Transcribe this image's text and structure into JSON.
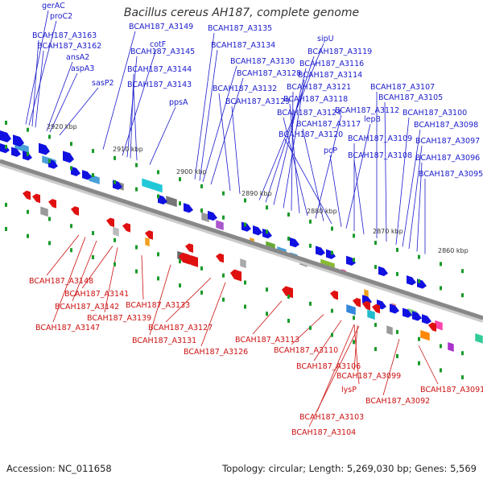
{
  "title": "Bacillus cereus AH187, complete genome",
  "footer": {
    "accession": "Accession: NC_011658",
    "summary": "Topology: circular; Length: 5,269,030 bp; Genes: 5,569"
  },
  "colors": {
    "top_labels": "#1a1acc",
    "bottom_labels": "#cc1111",
    "forward_genes": "#1010e0",
    "reverse_genes": "#e01010",
    "backbone": "#888888"
  },
  "scale_labels": [
    "2920 kbp",
    "2910 kbp",
    "2900 kbp",
    "2890 kbp",
    "2880 kbp",
    "2870 kbp",
    "2860 kbp"
  ],
  "top_labels": [
    "gerAC",
    "proC2",
    "BCAH187_A3163",
    "BCAH187_A3162",
    "ansA2",
    "aspA3",
    "sasP2",
    "BCAH187_A3149",
    "cotF",
    "BCAH187_A3145",
    "BCAH187_A3144",
    "BCAH187_A3143",
    "ppsA",
    "BCAH187_A3135",
    "BCAH187_A3134",
    "BCAH187_A3130",
    "BCAH187_A3128",
    "BCAH187_A3132",
    "BCAH187_A3129",
    "sipU",
    "BCAH187_A3119",
    "BCAH187_A3116",
    "BCAH187_A3114",
    "BCAH187_A3121",
    "BCAH187_A3118",
    "BCAH187_A3124",
    "BCAH187_A3112",
    "BCAH187_A3117",
    "BCAH187_A3120",
    "pcP",
    "lepB",
    "BCAH187_A3109",
    "BCAH187_A3108",
    "BCAH187_A3107",
    "BCAH187_A3105",
    "BCAH187_A3100",
    "BCAH187_A3098",
    "BCAH187_A3097",
    "BCAH187_A3096",
    "BCAH187_A3095"
  ],
  "bottom_labels": [
    "BCAH187_A3148",
    "BCAH187_A3141",
    "BCAH187_A3142",
    "BCAH187_A3139",
    "BCAH187_A3147",
    "BCAH187_A3133",
    "BCAH187_A3127",
    "BCAH187_A3131",
    "BCAH187_A3126",
    "BCAH187_A3113",
    "BCAH187_A3110",
    "BCAH187_A3106",
    "BCAH187_A3099",
    "lysP",
    "BCAH187_A3092",
    "BCAH187_A3091",
    "BCAH187_A3103",
    "BCAH187_A3104"
  ]
}
